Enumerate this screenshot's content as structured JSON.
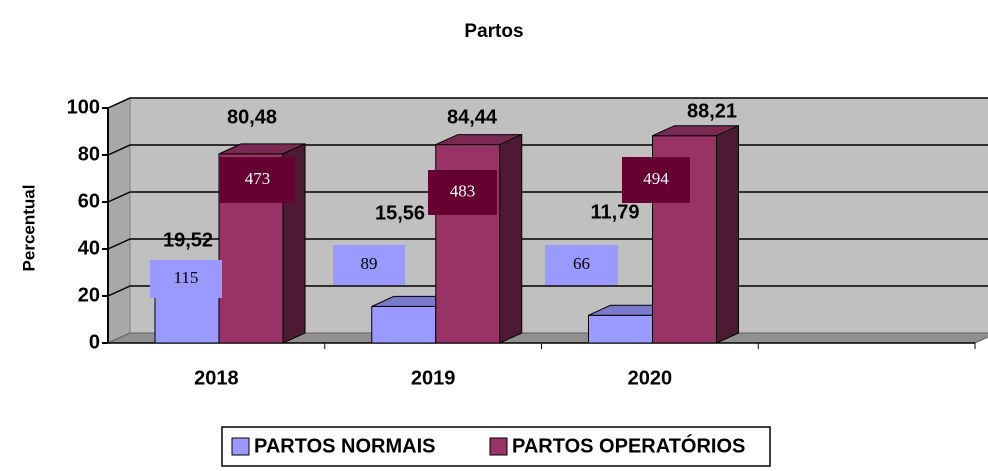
{
  "chart_data": {
    "type": "bar3d",
    "title": "Partos",
    "y_label": "Percentual",
    "categories": [
      "2018",
      "2019",
      "2020",
      null
    ],
    "series": [
      {
        "name": "PARTOS NORMAIS",
        "color": "#9999ff",
        "values": [
          19.52,
          15.56,
          11.79,
          null
        ],
        "value_labels": [
          "19,52",
          "15,56",
          "11,79",
          null
        ],
        "counts": [
          115,
          89,
          66,
          null
        ]
      },
      {
        "name": "PARTOS OPERATÓRIOS",
        "color": "#993366",
        "values": [
          80.48,
          84.44,
          88.21,
          null
        ],
        "value_labels": [
          "80,48",
          "84,44",
          "88,21",
          null
        ],
        "counts": [
          473,
          483,
          494,
          null
        ]
      }
    ],
    "ylim": [
      0,
      100
    ],
    "yticks": [
      0,
      20,
      40,
      60,
      80,
      100
    ],
    "grid": true,
    "legend": "bottom"
  }
}
